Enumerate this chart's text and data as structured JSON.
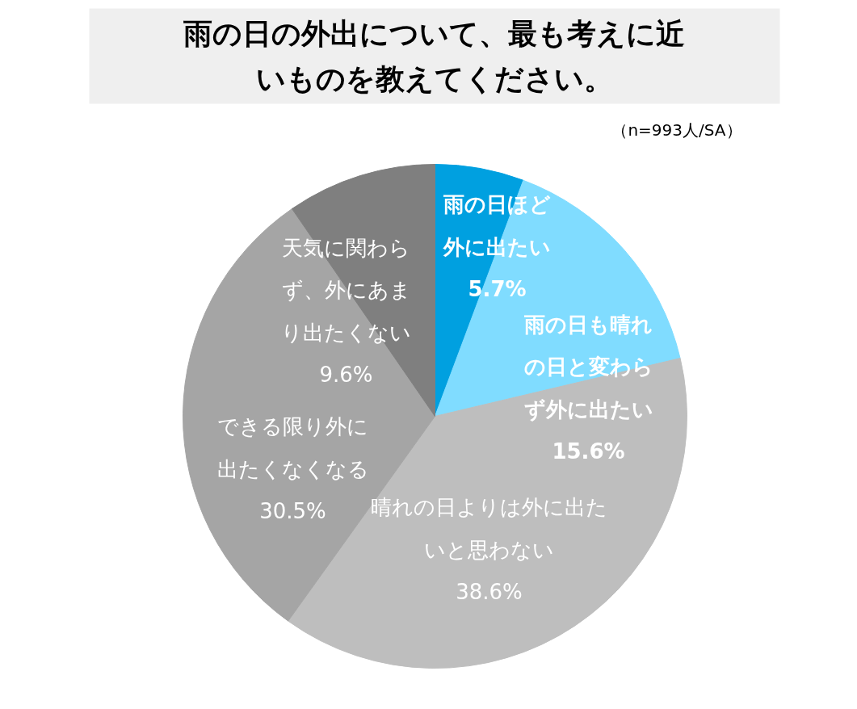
{
  "chart_data": {
    "type": "pie",
    "title": "雨の日の外出について、最も考えに近いものを教えてください。",
    "categories": [
      "雨の日ほど外に出たい",
      "雨の日も晴れの日と変わらず外に出たい",
      "晴れの日よりは外に出たいと思わない",
      "できる限り外に出たくなくなる",
      "天気に関わらず、外にあまり出たくない"
    ],
    "values": [
      5.7,
      15.6,
      38.6,
      30.5,
      9.6
    ],
    "value_labels": [
      "5.7%",
      "15.6%",
      "38.6%",
      "30.5%",
      "9.6%"
    ],
    "colors": [
      "#00a0e0",
      "#80dcff",
      "#bebebe",
      "#a5a5a5",
      "#7f7f7f"
    ],
    "annotations": [
      "（n=993人/SA）"
    ]
  }
}
